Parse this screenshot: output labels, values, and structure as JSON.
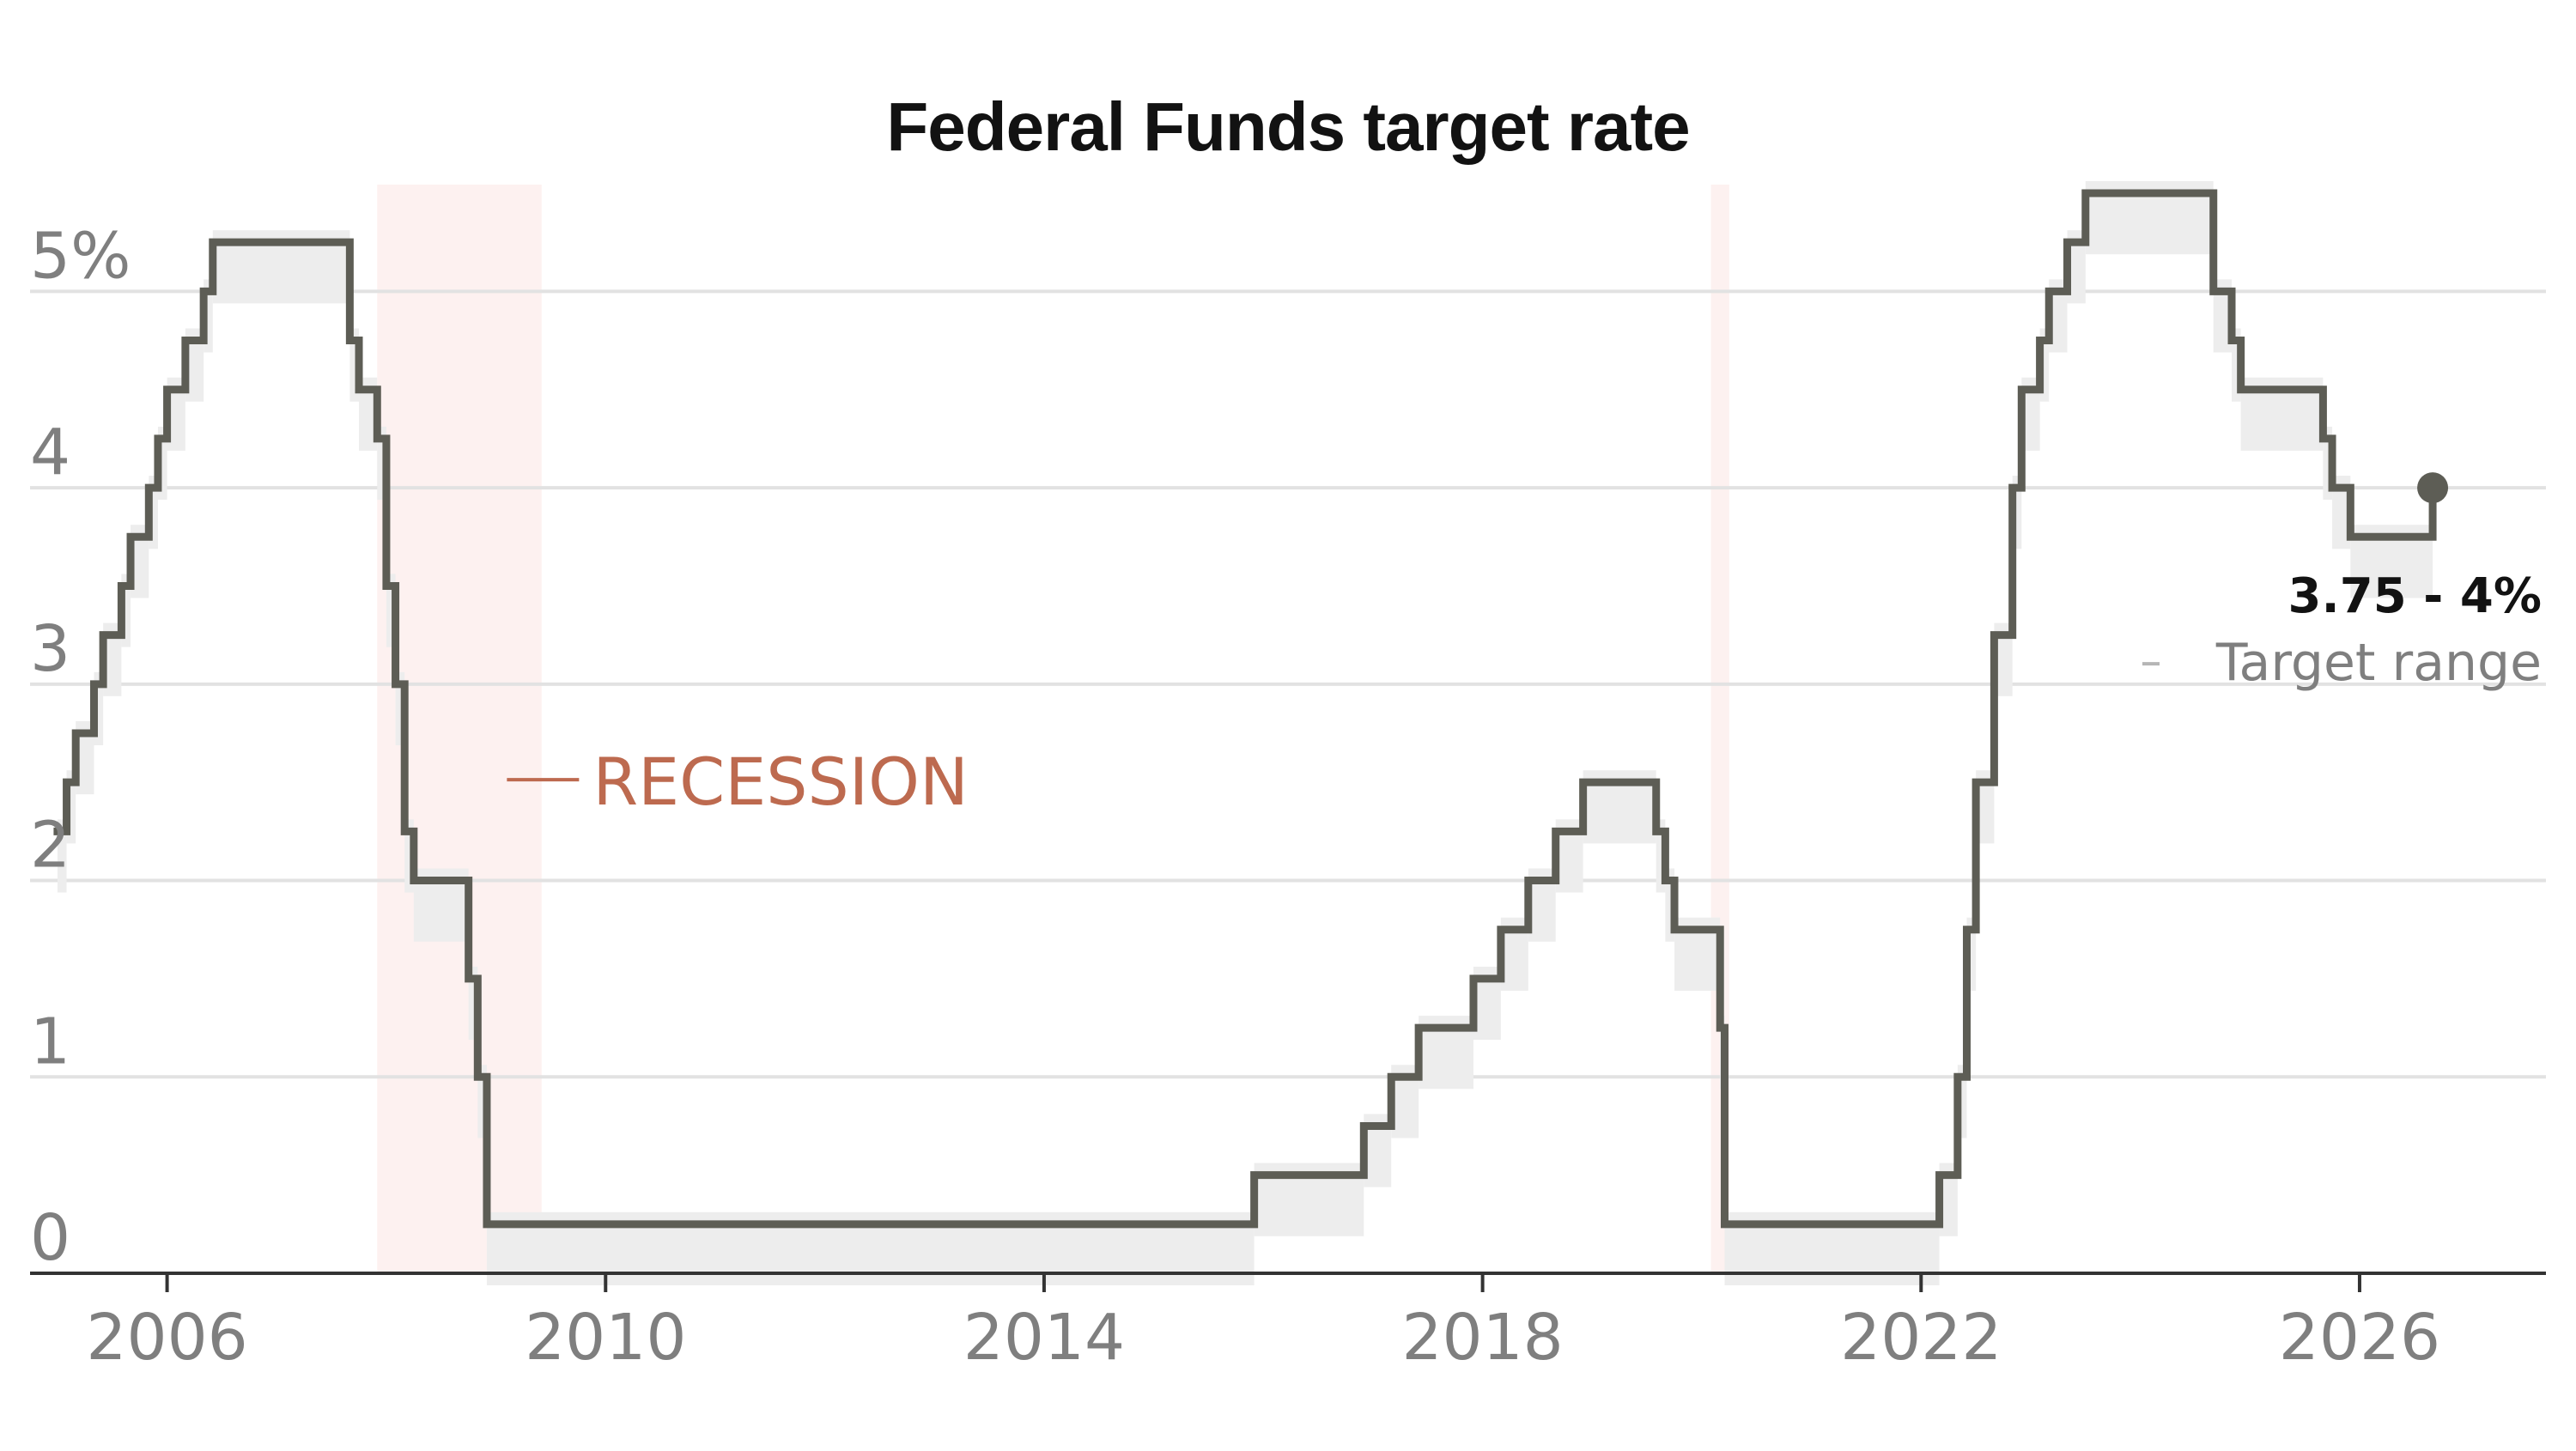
{
  "chart_data": {
    "type": "line",
    "title": "Federal Funds target rate",
    "xlabel": "",
    "ylabel": "",
    "x_ticks": [
      "2006",
      "2010",
      "2014",
      "2018",
      "2022",
      "2026"
    ],
    "y_ticks": [
      "0",
      "1",
      "2",
      "3",
      "4",
      "5%"
    ],
    "xlim": [
      2004.75,
      2027.7
    ],
    "ylim": [
      0,
      5.5
    ],
    "grid": true,
    "recession_label": "RECESSION",
    "recessions": [
      {
        "start": "2007-12",
        "end": "2009-06"
      },
      {
        "start": "2020-02",
        "end": "2020-04"
      }
    ],
    "annotation": {
      "value": "3.75 - 4%",
      "label": "Target range"
    },
    "series": [
      {
        "values": [
          {
            "date": "2005-01",
            "lower": 2.0,
            "upper": 2.25
          },
          {
            "date": "2005-02",
            "lower": 2.25,
            "upper": 2.5
          },
          {
            "date": "2005-03",
            "lower": 2.5,
            "upper": 2.75
          },
          {
            "date": "2005-05",
            "lower": 2.75,
            "upper": 3.0
          },
          {
            "date": "2005-06",
            "lower": 3.0,
            "upper": 3.25
          },
          {
            "date": "2005-08",
            "lower": 3.25,
            "upper": 3.5
          },
          {
            "date": "2005-09",
            "lower": 3.5,
            "upper": 3.75
          },
          {
            "date": "2005-11",
            "lower": 3.75,
            "upper": 4.0
          },
          {
            "date": "2005-12",
            "lower": 4.0,
            "upper": 4.25
          },
          {
            "date": "2006-01",
            "lower": 4.25,
            "upper": 4.5
          },
          {
            "date": "2006-03",
            "lower": 4.5,
            "upper": 4.75
          },
          {
            "date": "2006-05",
            "lower": 4.75,
            "upper": 5.0
          },
          {
            "date": "2006-06",
            "lower": 5.0,
            "upper": 5.25
          },
          {
            "date": "2007-09",
            "lower": 4.5,
            "upper": 4.75
          },
          {
            "date": "2007-10",
            "lower": 4.25,
            "upper": 4.5
          },
          {
            "date": "2007-12",
            "lower": 4.0,
            "upper": 4.25
          },
          {
            "date": "2008-01",
            "lower": 3.25,
            "upper": 3.5
          },
          {
            "date": "2008-02",
            "lower": 2.75,
            "upper": 3.0
          },
          {
            "date": "2008-03",
            "lower": 2.0,
            "upper": 2.25
          },
          {
            "date": "2008-04",
            "lower": 1.75,
            "upper": 2.0
          },
          {
            "date": "2008-10",
            "lower": 1.25,
            "upper": 1.5
          },
          {
            "date": "2008-11",
            "lower": 0.75,
            "upper": 1.0
          },
          {
            "date": "2008-12",
            "lower": 0.0,
            "upper": 0.25
          },
          {
            "date": "2015-12",
            "lower": 0.25,
            "upper": 0.5
          },
          {
            "date": "2016-12",
            "lower": 0.5,
            "upper": 0.75
          },
          {
            "date": "2017-03",
            "lower": 0.75,
            "upper": 1.0
          },
          {
            "date": "2017-06",
            "lower": 1.0,
            "upper": 1.25
          },
          {
            "date": "2017-12",
            "lower": 1.25,
            "upper": 1.5
          },
          {
            "date": "2018-03",
            "lower": 1.5,
            "upper": 1.75
          },
          {
            "date": "2018-06",
            "lower": 1.75,
            "upper": 2.0
          },
          {
            "date": "2018-09",
            "lower": 2.0,
            "upper": 2.25
          },
          {
            "date": "2018-12",
            "lower": 2.25,
            "upper": 2.5
          },
          {
            "date": "2019-08",
            "lower": 2.0,
            "upper": 2.25
          },
          {
            "date": "2019-09",
            "lower": 1.75,
            "upper": 2.0
          },
          {
            "date": "2019-10",
            "lower": 1.5,
            "upper": 1.75
          },
          {
            "date": "2020-03",
            "lower": 1.0,
            "upper": 1.25
          },
          {
            "date": "2020-03-16",
            "lower": 0.0,
            "upper": 0.25
          },
          {
            "date": "2022-03",
            "lower": 0.25,
            "upper": 0.5
          },
          {
            "date": "2022-05",
            "lower": 0.75,
            "upper": 1.0
          },
          {
            "date": "2022-06",
            "lower": 1.5,
            "upper": 1.75
          },
          {
            "date": "2022-07",
            "lower": 2.25,
            "upper": 2.5
          },
          {
            "date": "2022-09",
            "lower": 3.0,
            "upper": 3.25
          },
          {
            "date": "2022-11",
            "lower": 3.75,
            "upper": 4.0
          },
          {
            "date": "2022-12",
            "lower": 4.25,
            "upper": 4.5
          },
          {
            "date": "2023-02",
            "lower": 4.5,
            "upper": 4.75
          },
          {
            "date": "2023-03",
            "lower": 4.75,
            "upper": 5.0
          },
          {
            "date": "2023-05",
            "lower": 5.0,
            "upper": 5.25
          },
          {
            "date": "2023-07",
            "lower": 5.25,
            "upper": 5.5
          },
          {
            "date": "2024-09",
            "lower": 4.75,
            "upper": 5.0
          },
          {
            "date": "2024-11",
            "lower": 4.5,
            "upper": 4.75
          },
          {
            "date": "2024-12",
            "lower": 4.25,
            "upper": 4.5
          },
          {
            "date": "2025-09",
            "lower": 4.0,
            "upper": 4.25
          },
          {
            "date": "2025-10",
            "lower": 3.75,
            "upper": 4.0
          },
          {
            "date": "2025-12",
            "lower": 3.5,
            "upper": 3.75
          },
          {
            "date": "2026-09",
            "lower": 3.75,
            "upper": 4.0
          }
        ]
      }
    ],
    "colors": {
      "line": "#5d5d55",
      "band": "#ededed",
      "recession": "#fdf1f0",
      "recession_text": "#bd6a4f",
      "grid": "#e2e2e2",
      "axis": "#333333",
      "tick_text": "#7f7f7f",
      "title": "#121212"
    }
  }
}
